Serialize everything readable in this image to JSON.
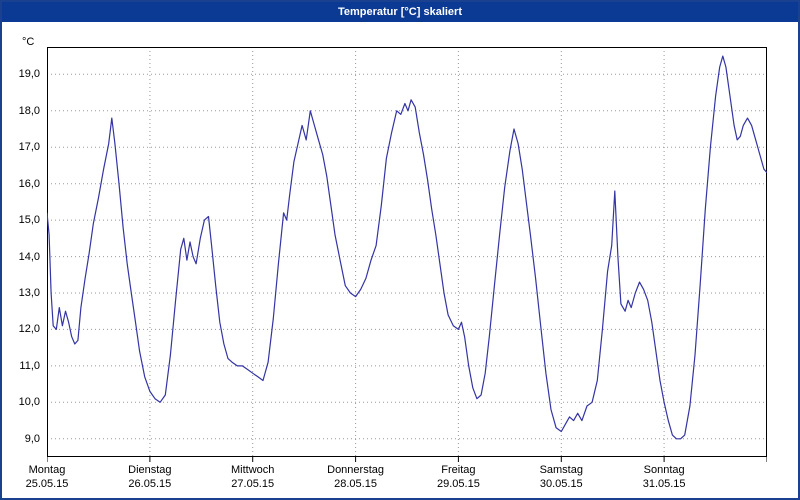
{
  "window": {
    "title": "Temperatur [°C] skaliert",
    "titlebar_color": "#0a3a94",
    "border_color": "#1a418f",
    "background": "#ffffff"
  },
  "chart_data": {
    "type": "line",
    "title": "Temperatur [°C] skaliert",
    "ylabel": "°C",
    "xlabel": "",
    "line_color": "#3434a4",
    "grid_color": "#999999",
    "axis_color": "#000000",
    "grid": true,
    "legend": "none",
    "ylim": [
      8.5,
      19.75
    ],
    "xlim": [
      0,
      7
    ],
    "yticks": [
      {
        "value": 9,
        "label": "9,0"
      },
      {
        "value": 10,
        "label": "10,0"
      },
      {
        "value": 11,
        "label": "11,0"
      },
      {
        "value": 12,
        "label": "12,0"
      },
      {
        "value": 13,
        "label": "13,0"
      },
      {
        "value": 14,
        "label": "14,0"
      },
      {
        "value": 15,
        "label": "15,0"
      },
      {
        "value": 16,
        "label": "16,0"
      },
      {
        "value": 17,
        "label": "17,0"
      },
      {
        "value": 18,
        "label": "18,0"
      },
      {
        "value": 19,
        "label": "19,0"
      }
    ],
    "xticks": [
      {
        "day": 0,
        "name": "Montag",
        "date": "25.05.15"
      },
      {
        "day": 1,
        "name": "Dienstag",
        "date": "26.05.15"
      },
      {
        "day": 2,
        "name": "Mittwoch",
        "date": "27.05.15"
      },
      {
        "day": 3,
        "name": "Donnerstag",
        "date": "28.05.15"
      },
      {
        "day": 4,
        "name": "Freitag",
        "date": "29.05.15"
      },
      {
        "day": 5,
        "name": "Samstag",
        "date": "30.05.15"
      },
      {
        "day": 6,
        "name": "Sonntag",
        "date": "31.05.15"
      }
    ],
    "series": [
      {
        "name": "Temperatur",
        "x": [
          0.0,
          0.02,
          0.04,
          0.06,
          0.09,
          0.12,
          0.15,
          0.18,
          0.21,
          0.24,
          0.27,
          0.3,
          0.33,
          0.37,
          0.41,
          0.45,
          0.5,
          0.55,
          0.6,
          0.63,
          0.66,
          0.7,
          0.74,
          0.78,
          0.82,
          0.86,
          0.9,
          0.95,
          1.0,
          1.05,
          1.1,
          1.15,
          1.2,
          1.25,
          1.3,
          1.33,
          1.36,
          1.39,
          1.42,
          1.45,
          1.49,
          1.53,
          1.57,
          1.6,
          1.64,
          1.68,
          1.72,
          1.76,
          1.8,
          1.85,
          1.9,
          1.95,
          2.0,
          2.05,
          2.1,
          2.15,
          2.2,
          2.25,
          2.3,
          2.33,
          2.36,
          2.4,
          2.44,
          2.48,
          2.52,
          2.56,
          2.6,
          2.64,
          2.68,
          2.72,
          2.76,
          2.8,
          2.85,
          2.9,
          2.95,
          3.0,
          3.05,
          3.1,
          3.15,
          3.2,
          3.25,
          3.3,
          3.35,
          3.4,
          3.44,
          3.48,
          3.51,
          3.54,
          3.58,
          3.62,
          3.66,
          3.7,
          3.74,
          3.78,
          3.82,
          3.86,
          3.9,
          3.95,
          4.0,
          4.03,
          4.06,
          4.1,
          4.14,
          4.18,
          4.22,
          4.26,
          4.3,
          4.35,
          4.4,
          4.45,
          4.5,
          4.54,
          4.58,
          4.62,
          4.66,
          4.7,
          4.75,
          4.8,
          4.85,
          4.9,
          4.95,
          5.0,
          5.04,
          5.08,
          5.12,
          5.16,
          5.2,
          5.25,
          5.3,
          5.35,
          5.4,
          5.45,
          5.49,
          5.52,
          5.55,
          5.58,
          5.62,
          5.65,
          5.68,
          5.72,
          5.76,
          5.8,
          5.84,
          5.88,
          5.92,
          5.96,
          6.0,
          6.04,
          6.08,
          6.12,
          6.16,
          6.2,
          6.25,
          6.3,
          6.35,
          6.4,
          6.45,
          6.5,
          6.54,
          6.57,
          6.6,
          6.64,
          6.68,
          6.71,
          6.74,
          6.77,
          6.81,
          6.85,
          6.89,
          6.93,
          6.97,
          7.0
        ],
        "y": [
          15.2,
          14.6,
          13.0,
          12.1,
          12.0,
          12.6,
          12.1,
          12.5,
          12.2,
          11.8,
          11.6,
          11.7,
          12.6,
          13.4,
          14.1,
          14.9,
          15.6,
          16.4,
          17.1,
          17.8,
          17.1,
          16.0,
          14.8,
          13.8,
          13.0,
          12.2,
          11.4,
          10.7,
          10.3,
          10.1,
          10.0,
          10.2,
          11.3,
          12.8,
          14.2,
          14.5,
          13.9,
          14.4,
          14.0,
          13.8,
          14.5,
          15.0,
          15.1,
          14.3,
          13.2,
          12.2,
          11.6,
          11.2,
          11.1,
          11.0,
          11.0,
          10.9,
          10.8,
          10.7,
          10.6,
          11.1,
          12.3,
          13.8,
          15.2,
          15.0,
          15.7,
          16.6,
          17.1,
          17.6,
          17.2,
          18.0,
          17.6,
          17.2,
          16.8,
          16.2,
          15.4,
          14.6,
          13.9,
          13.2,
          13.0,
          12.9,
          13.1,
          13.4,
          13.9,
          14.3,
          15.4,
          16.7,
          17.4,
          18.0,
          17.9,
          18.2,
          18.0,
          18.3,
          18.1,
          17.4,
          16.8,
          16.1,
          15.3,
          14.6,
          13.8,
          13.0,
          12.4,
          12.1,
          12.0,
          12.2,
          11.8,
          11.0,
          10.4,
          10.1,
          10.2,
          10.8,
          11.8,
          13.2,
          14.6,
          15.9,
          16.9,
          17.5,
          17.1,
          16.4,
          15.5,
          14.6,
          13.4,
          12.1,
          10.8,
          9.8,
          9.3,
          9.2,
          9.4,
          9.6,
          9.5,
          9.7,
          9.5,
          9.9,
          10.0,
          10.6,
          12.0,
          13.6,
          14.3,
          15.8,
          14.0,
          12.7,
          12.5,
          12.8,
          12.6,
          13.0,
          13.3,
          13.1,
          12.8,
          12.2,
          11.4,
          10.6,
          10.0,
          9.5,
          9.1,
          9.0,
          9.0,
          9.1,
          9.9,
          11.3,
          13.2,
          15.3,
          17.0,
          18.4,
          19.2,
          19.5,
          19.2,
          18.4,
          17.6,
          17.2,
          17.3,
          17.6,
          17.8,
          17.6,
          17.2,
          16.8,
          16.4,
          16.3
        ]
      }
    ]
  }
}
